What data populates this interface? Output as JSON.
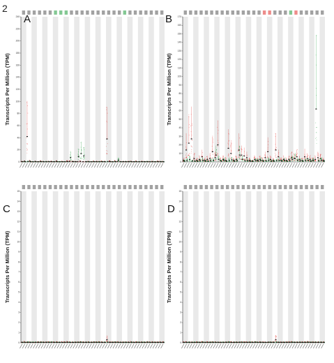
{
  "figure_number": "2",
  "colors": {
    "tumor": "#e0302c",
    "normal": "#1f9a3c",
    "stripe": "#e9e9e9",
    "axis": "#333333",
    "label": "#555555"
  },
  "chart_data": [
    {
      "type": "scatter",
      "panel_label": "A",
      "ylabel": "Transcripts Per Million (TPM)",
      "ylim": [
        0,
        240
      ],
      "yticks": [
        0,
        20,
        40,
        60,
        80,
        100,
        120,
        140,
        160,
        180,
        200,
        220,
        240
      ],
      "top_label_colors": [
        "#555555",
        "#555555",
        "#555555",
        "#555555",
        "#555555",
        "#555555",
        "#1f9a3c",
        "#1f9a3c",
        "#1f9a3c",
        "#555555",
        "#555555",
        "#555555",
        "#555555",
        "#555555",
        "#555555",
        "#555555",
        "#555555",
        "#555555",
        "#555555",
        "#1f9a3c",
        "#555555",
        "#555555",
        "#555555",
        "#555555",
        "#555555",
        "#555555",
        "#555555"
      ],
      "series": [
        {
          "name": "",
          "color": "#e0302c",
          "values": [
            0.6,
            1.2,
            42,
            1.5,
            0.5,
            0.8,
            0.4,
            1,
            0.6,
            0.5,
            0.7,
            0.8,
            0.5,
            1.2,
            0.4,
            0.6,
            0.5,
            1,
            1,
            0.8,
            0.5,
            0.5,
            1,
            0.5,
            0.4,
            0.6,
            0.5,
            0.8,
            0.6,
            0.5,
            0.7,
            0.6,
            38,
            0.9,
            0.4,
            1,
            0.6,
            0.5,
            0.5,
            0.6,
            0.5,
            0.7,
            0.5,
            0.8,
            0.4,
            0.6,
            0.5,
            0.7,
            0.4,
            0.5,
            0.4,
            0.8,
            0.6,
            0.5
          ]
        },
        {
          "name": "",
          "color": "#1f9a3c",
          "values": [
            0.4,
            0.3,
            0.8,
            0.3,
            0.2,
            0.4,
            0.3,
            0.5,
            0.3,
            0.3,
            0.4,
            0.4,
            0.3,
            0.4,
            0.3,
            0.4,
            0.3,
            0.5,
            7,
            0.5,
            0.4,
            9,
            14,
            10,
            0.3,
            0.2,
            0.3,
            0.4,
            0.3,
            0.3,
            0.4,
            0.3,
            0.6,
            0.4,
            0.3,
            0.4,
            3,
            0.4,
            0.5,
            0.3,
            0.4,
            0.4,
            0.3,
            0.3,
            0.3,
            0.4,
            0.3,
            0.4,
            0.3,
            0.3,
            0.3,
            0.4,
            0.3,
            0.3
          ]
        }
      ]
    },
    {
      "type": "scatter",
      "panel_label": "B",
      "ylabel": "Transcripts Per Million (TPM)",
      "ylim": [
        0,
        170
      ],
      "yticks": [
        0,
        10,
        20,
        30,
        40,
        50,
        60,
        70,
        80,
        90,
        100,
        110,
        120,
        130,
        140,
        150,
        160,
        170
      ],
      "top_label_colors": [
        "#555555",
        "#555555",
        "#555555",
        "#555555",
        "#555555",
        "#555555",
        "#555555",
        "#555555",
        "#555555",
        "#555555",
        "#555555",
        "#555555",
        "#555555",
        "#555555",
        "#555555",
        "#e0302c",
        "#e0302c",
        "#555555",
        "#555555",
        "#555555",
        "#1f9a3c",
        "#e0302c",
        "#555555",
        "#555555",
        "#555555",
        "#555555",
        "#555555"
      ],
      "series": [
        {
          "name": "",
          "color": "#e0302c",
          "values": [
            2,
            14,
            22,
            27,
            4,
            2,
            3,
            6,
            2,
            3,
            4,
            12,
            5,
            20,
            2,
            3,
            2,
            16,
            10,
            2,
            3,
            14,
            8,
            7,
            5,
            2,
            1,
            3,
            2,
            3,
            2,
            5,
            12,
            3,
            2,
            14,
            6,
            2,
            3,
            2,
            3,
            5,
            4,
            6,
            3,
            2,
            6,
            4,
            3,
            2,
            3,
            5,
            4,
            2
          ]
        },
        {
          "name": "",
          "color": "#1f9a3c",
          "values": [
            1,
            1.5,
            3,
            1.2,
            1,
            0.8,
            1.5,
            2,
            1,
            1,
            1.4,
            2,
            8,
            3,
            1,
            2,
            1,
            2,
            2.5,
            1,
            1.5,
            8,
            3,
            1.5,
            1.5,
            1,
            1,
            1.5,
            1.5,
            2,
            1,
            1.5,
            2,
            1,
            1,
            1.5,
            2,
            1,
            2,
            1,
            1.5,
            3,
            4,
            2,
            1.5,
            1,
            1.5,
            2,
            1,
            2,
            62,
            1.5,
            2,
            1
          ]
        }
      ]
    },
    {
      "type": "scatter",
      "panel_label": "C",
      "ylabel": "Transcripts Per Million (TPM)",
      "ylim": [
        0,
        15
      ],
      "yticks": [
        0,
        1,
        2,
        3,
        4,
        5,
        6,
        7,
        8,
        9,
        10,
        11,
        12,
        13,
        14,
        15
      ],
      "top_label_colors": [
        "#555555",
        "#555555",
        "#555555",
        "#555555",
        "#555555",
        "#555555",
        "#555555",
        "#555555",
        "#555555",
        "#555555",
        "#555555",
        "#555555",
        "#555555",
        "#555555",
        "#555555",
        "#555555",
        "#555555",
        "#555555",
        "#555555",
        "#555555",
        "#555555",
        "#555555",
        "#555555",
        "#555555",
        "#555555",
        "#555555",
        "#555555"
      ],
      "series": [
        {
          "name": "",
          "color": "#e0302c",
          "values": [
            0.05,
            0.06,
            0.05,
            0.05,
            0.04,
            0.05,
            0.05,
            0.06,
            0.05,
            0.05,
            0.05,
            0.06,
            0.05,
            0.05,
            0.04,
            0.05,
            0.05,
            0.06,
            0.05,
            0.05,
            0.05,
            0.05,
            0.06,
            0.05,
            0.05,
            0.05,
            0.05,
            0.06,
            0.05,
            0.05,
            0.05,
            0.05,
            0.3,
            0.05,
            0.05,
            0.06,
            0.05,
            0.05,
            0.05,
            0.05,
            0.05,
            0.06,
            0.05,
            0.05,
            0.05,
            0.05,
            0.05,
            0.06,
            0.05,
            0.05,
            0.05,
            0.05,
            0.05,
            0.05
          ]
        },
        {
          "name": "",
          "color": "#1f9a3c",
          "values": [
            0.04,
            0.04,
            0.05,
            0.04,
            0.04,
            0.04,
            0.04,
            0.05,
            0.04,
            0.04,
            0.04,
            0.05,
            0.04,
            0.04,
            0.04,
            0.04,
            0.04,
            0.05,
            0.04,
            0.04,
            0.04,
            0.05,
            0.05,
            0.04,
            0.04,
            0.04,
            0.04,
            0.05,
            0.04,
            0.04,
            0.04,
            0.04,
            0.05,
            0.04,
            0.04,
            0.05,
            0.04,
            0.04,
            0.04,
            0.04,
            0.04,
            0.05,
            0.04,
            0.04,
            0.04,
            0.04,
            0.04,
            0.05,
            0.04,
            0.04,
            0.04,
            0.04,
            0.04,
            0.04
          ]
        }
      ]
    },
    {
      "type": "scatter",
      "panel_label": "D",
      "ylabel": "Transcripts Per Million (TPM)",
      "ylim": [
        0,
        15
      ],
      "yticks": [
        0,
        1,
        2,
        3,
        4,
        5,
        6,
        7,
        8,
        9,
        10,
        11,
        12,
        13,
        14,
        15
      ],
      "top_label_colors": [
        "#555555",
        "#555555",
        "#555555",
        "#555555",
        "#555555",
        "#555555",
        "#555555",
        "#555555",
        "#555555",
        "#555555",
        "#555555",
        "#555555",
        "#555555",
        "#555555",
        "#555555",
        "#555555",
        "#555555",
        "#555555",
        "#555555",
        "#555555",
        "#555555",
        "#555555",
        "#555555",
        "#555555",
        "#555555",
        "#555555",
        "#555555"
      ],
      "series": [
        {
          "name": "",
          "color": "#e0302c",
          "values": [
            0.05,
            0.06,
            0.05,
            0.05,
            0.04,
            0.05,
            0.05,
            0.06,
            0.05,
            0.05,
            0.05,
            0.06,
            0.05,
            0.05,
            0.04,
            0.05,
            0.05,
            0.06,
            0.05,
            0.05,
            0.05,
            0.05,
            0.06,
            0.05,
            0.05,
            0.05,
            0.05,
            0.06,
            0.05,
            0.05,
            0.05,
            0.05,
            0.05,
            0.05,
            0.05,
            0.3,
            0.05,
            0.05,
            0.05,
            0.05,
            0.05,
            0.06,
            0.05,
            0.05,
            0.05,
            0.05,
            0.05,
            0.06,
            0.05,
            0.05,
            0.05,
            0.05,
            0.05,
            0.05
          ]
        },
        {
          "name": "",
          "color": "#1f9a3c",
          "values": [
            0.04,
            0.04,
            0.05,
            0.04,
            0.04,
            0.04,
            0.04,
            0.05,
            0.04,
            0.04,
            0.04,
            0.05,
            0.04,
            0.04,
            0.04,
            0.04,
            0.04,
            0.05,
            0.04,
            0.04,
            0.04,
            0.05,
            0.05,
            0.04,
            0.04,
            0.04,
            0.04,
            0.05,
            0.04,
            0.04,
            0.04,
            0.04,
            0.05,
            0.04,
            0.04,
            0.05,
            0.04,
            0.04,
            0.04,
            0.04,
            0.04,
            0.05,
            0.04,
            0.04,
            0.04,
            0.04,
            0.04,
            0.05,
            0.04,
            0.04,
            0.04,
            0.04,
            0.04,
            0.04
          ]
        }
      ]
    }
  ]
}
